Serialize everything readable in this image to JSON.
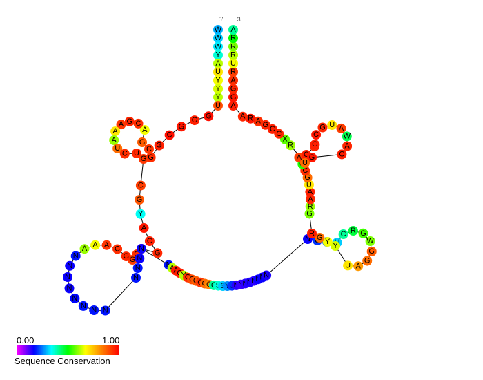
{
  "ends": {
    "five_prime": "5'",
    "three_prime": "3'"
  },
  "legend": {
    "min": "0.00",
    "max": "1.00",
    "title": "Sequence Conservation"
  },
  "colormap": [
    "#ff00ff",
    "#0000ff",
    "#00ffff",
    "#00ff00",
    "#ffff00",
    "#ff8000",
    "#ff0000"
  ],
  "nucleotides": [
    {
      "b": "W",
      "c": 0.28
    },
    {
      "b": "W",
      "c": 0.3
    },
    {
      "b": "W",
      "c": 0.32
    },
    {
      "b": "Y",
      "c": 0.36
    },
    {
      "b": "A",
      "c": 0.62
    },
    {
      "b": "U",
      "c": 0.7
    },
    {
      "b": "Y",
      "c": 0.66
    },
    {
      "b": "Y",
      "c": 0.64
    },
    {
      "b": "Y",
      "c": 0.62
    },
    {
      "b": "U",
      "c": 0.9
    },
    {
      "b": "G",
      "c": 0.98
    },
    {
      "b": "G",
      "c": 0.96
    },
    {
      "b": "G",
      "c": 0.97
    },
    {
      "b": "C",
      "c": 0.98
    },
    {
      "b": "G",
      "c": 0.96
    },
    {
      "b": "G",
      "c": 0.94
    },
    {
      "b": "C",
      "c": 0.93
    },
    {
      "b": "G",
      "c": 0.88
    },
    {
      "b": "A",
      "c": 0.66
    },
    {
      "b": "C",
      "c": 0.94
    },
    {
      "b": "G",
      "c": 0.95
    },
    {
      "b": "A",
      "c": 0.93
    },
    {
      "b": "A",
      "c": 0.7
    },
    {
      "b": "A",
      "c": 0.6
    },
    {
      "b": "U",
      "c": 0.86
    },
    {
      "b": "C",
      "c": 0.94
    },
    {
      "b": "U",
      "c": 0.95
    },
    {
      "b": "G",
      "c": 0.93
    },
    {
      "b": "C",
      "c": 0.92
    },
    {
      "b": "G",
      "c": 0.89
    },
    {
      "b": "Y",
      "c": 0.34
    },
    {
      "b": "A",
      "c": 0.97
    },
    {
      "b": "C",
      "c": 0.96
    },
    {
      "b": "G",
      "c": 0.95
    },
    {
      "b": "G",
      "c": 0.96
    },
    {
      "b": "G",
      "c": 0.94
    },
    {
      "b": "G",
      "c": 0.92
    },
    {
      "b": "G",
      "c": 0.95
    },
    {
      "b": "C",
      "c": 0.94
    },
    {
      "b": "A",
      "c": 0.93
    },
    {
      "b": "A",
      "c": 0.66
    },
    {
      "b": "A",
      "c": 0.6
    },
    {
      "b": "N",
      "c": 0.18
    },
    {
      "b": "N",
      "c": 0.16
    },
    {
      "b": "N",
      "c": 0.16
    },
    {
      "b": "N",
      "c": 0.16
    },
    {
      "b": "N",
      "c": 0.17
    },
    {
      "b": "N",
      "c": 0.18
    },
    {
      "b": "N",
      "c": 0.18
    },
    {
      "b": "N",
      "c": 0.18
    },
    {
      "b": "N",
      "c": 0.18
    },
    {
      "b": "N",
      "c": 0.18
    },
    {
      "b": "N",
      "c": 0.16
    },
    {
      "b": "N",
      "c": 0.16
    },
    {
      "b": "N",
      "c": 0.18
    },
    {
      "b": "A",
      "c": 0.62
    },
    {
      "b": "A",
      "c": 0.97
    },
    {
      "b": "G",
      "c": 0.96
    },
    {
      "b": "Y",
      "c": 0.62
    },
    {
      "b": "G",
      "c": 0.94
    },
    {
      "b": "C",
      "c": 0.9
    },
    {
      "b": "G",
      "c": 0.88
    },
    {
      "b": "G",
      "c": 0.93
    },
    {
      "b": "G",
      "c": 0.86
    },
    {
      "b": "G",
      "c": 0.82
    },
    {
      "b": "C",
      "c": 0.4
    },
    {
      "b": "S",
      "c": 0.36
    },
    {
      "b": "S",
      "c": 0.3
    },
    {
      "b": "Y",
      "c": 0.26
    },
    {
      "b": "U",
      "c": 0.2
    },
    {
      "b": "N",
      "c": 0.14
    },
    {
      "b": "N",
      "c": 0.13
    },
    {
      "b": "N",
      "c": 0.14
    },
    {
      "b": "N",
      "c": 0.15
    },
    {
      "b": "N",
      "c": 0.14
    },
    {
      "b": "N",
      "c": 0.16
    },
    {
      "b": "N",
      "c": 0.16
    },
    {
      "b": "N",
      "c": 0.15
    },
    {
      "b": "N",
      "c": 0.16
    },
    {
      "b": "U",
      "c": 0.2
    },
    {
      "b": "K",
      "c": 0.24
    },
    {
      "b": "U",
      "c": 0.3
    },
    {
      "b": "C",
      "c": 0.4
    },
    {
      "b": "R",
      "c": 0.46
    },
    {
      "b": "G",
      "c": 0.54
    },
    {
      "b": "W",
      "c": 0.58
    },
    {
      "b": "G",
      "c": 0.88
    },
    {
      "b": "G",
      "c": 0.86
    },
    {
      "b": "A",
      "c": 0.8
    },
    {
      "b": "U",
      "c": 0.7
    },
    {
      "b": "Y",
      "c": 0.64
    },
    {
      "b": "Y",
      "c": 0.66
    },
    {
      "b": "G",
      "c": 0.86
    },
    {
      "b": "R",
      "c": 0.96
    },
    {
      "b": "G",
      "c": 0.58
    },
    {
      "b": "R",
      "c": 0.6
    },
    {
      "b": "A",
      "c": 0.95
    },
    {
      "b": "A",
      "c": 0.96
    },
    {
      "b": "U",
      "c": 0.7
    },
    {
      "b": "G",
      "c": 0.86
    },
    {
      "b": "C",
      "c": 0.94
    },
    {
      "b": "G",
      "c": 0.52
    },
    {
      "b": "A",
      "c": 0.92
    },
    {
      "b": "C",
      "c": 0.96
    },
    {
      "b": "G",
      "c": 0.95
    },
    {
      "b": "G",
      "c": 0.96
    },
    {
      "b": "C",
      "c": 0.97
    },
    {
      "b": "G",
      "c": 0.95
    },
    {
      "b": "U",
      "c": 0.7
    },
    {
      "b": "A",
      "c": 0.92
    },
    {
      "b": "W",
      "c": 0.45
    },
    {
      "b": "A",
      "c": 0.95
    },
    {
      "b": "C",
      "c": 0.96
    },
    {
      "b": "G",
      "c": 0.97
    },
    {
      "b": "U",
      "c": 0.86
    },
    {
      "b": "R",
      "c": 0.6
    },
    {
      "b": "X",
      "c": 0.56
    },
    {
      "b": "C",
      "c": 0.95
    },
    {
      "b": "C",
      "c": 0.96
    },
    {
      "b": "G",
      "c": 0.95
    },
    {
      "b": "A",
      "c": 0.94
    },
    {
      "b": "R",
      "c": 0.97
    },
    {
      "b": "A",
      "c": 0.95
    },
    {
      "b": "A",
      "c": 0.96
    },
    {
      "b": "G",
      "c": 0.97
    },
    {
      "b": "G",
      "c": 0.95
    },
    {
      "b": "A",
      "c": 0.94
    },
    {
      "b": "R",
      "c": 0.92
    },
    {
      "b": "U",
      "c": 0.66
    },
    {
      "b": "R",
      "c": 0.62
    },
    {
      "b": "R",
      "c": 0.58
    },
    {
      "b": "R",
      "c": 0.5
    },
    {
      "b": "A",
      "c": 0.4
    },
    {
      "b": "R",
      "c": 0.3
    }
  ]
}
